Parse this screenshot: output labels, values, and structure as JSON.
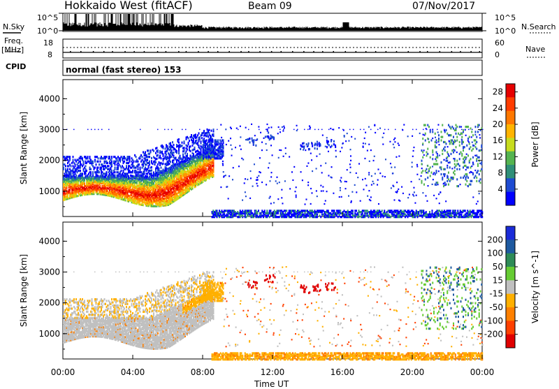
{
  "header": {
    "station": "Hokkaido West (fitACF)",
    "beam": "Beam 09",
    "date": "07/Nov/2017"
  },
  "aux_panels": {
    "nsky_label": "N.Sky",
    "nsearch_label": "N.Search",
    "nsky_ticks": [
      "10^5",
      "10^0"
    ],
    "nsearch_ticks": [
      "10^5",
      "10^0"
    ],
    "freq_label_1": "Freq.",
    "freq_label_2": "[MHz]",
    "freq_ticks": [
      "18",
      "8"
    ],
    "nave_label": "Nave",
    "nave_ticks": [
      "60",
      "0"
    ],
    "cpid_label": "CPID",
    "cpid_value": "normal (fast stereo) 153"
  },
  "colors": {
    "power_scale": [
      "#0000ff",
      "#1e4bd2",
      "#2f8f78",
      "#55b450",
      "#c8dc1e",
      "#ffb400",
      "#ff7800",
      "#ff3c00",
      "#e60000"
    ],
    "velocity_scale": [
      "#1a2bd8",
      "#1e5aa0",
      "#2e8b57",
      "#66cc33",
      "#c0c0c0",
      "#ffb000",
      "#ff8000",
      "#ff4000",
      "#e00000"
    ]
  },
  "chart_data": [
    {
      "type": "heatmap",
      "title": "Power",
      "xlabel": "Time UT",
      "ylabel": "Slant Range [km]",
      "x_ticks": [
        "00:00",
        "04:00",
        "08:00",
        "12:00",
        "16:00",
        "20:00",
        "00:00"
      ],
      "xlim_hours": [
        0,
        24
      ],
      "y_ticks": [
        1000,
        2000,
        3000,
        4000
      ],
      "ylim": [
        180,
        4620
      ],
      "colorbar": {
        "label": "Power [dB]",
        "ticks": [
          4,
          8,
          12,
          16,
          20,
          24,
          28
        ],
        "range": [
          0,
          30
        ]
      },
      "features": [
        {
          "description": "Strong echoes band",
          "time_range": [
            0,
            8.5
          ],
          "range_km": [
            750,
            1600
          ],
          "peak_db": 28
        },
        {
          "description": "Weak echoes above band",
          "time_range": [
            0,
            9.0
          ],
          "range_km": [
            1600,
            2600
          ],
          "peak_db": 8
        },
        {
          "description": "Near-range ground scatter",
          "time_range": [
            9,
            24
          ],
          "range_km": [
            200,
            400
          ],
          "peak_db": 8
        },
        {
          "description": "Late patches",
          "time_range": [
            20.5,
            24
          ],
          "range_km": [
            1200,
            3200
          ],
          "peak_db": 12
        }
      ]
    },
    {
      "type": "heatmap",
      "title": "Velocity",
      "xlabel": "Time UT",
      "ylabel": "Slant Range [km]",
      "x_ticks": [
        "00:00",
        "04:00",
        "08:00",
        "12:00",
        "16:00",
        "20:00",
        "00:00"
      ],
      "xlim_hours": [
        0,
        24
      ],
      "y_ticks": [
        1000,
        2000,
        3000,
        4000
      ],
      "ylim": [
        180,
        4620
      ],
      "colorbar": {
        "label": "Velocity [m s^-1]",
        "ticks": [
          200,
          100,
          50,
          15,
          -15,
          -50,
          -100,
          -200
        ],
        "range": [
          -250,
          250
        ]
      },
      "features": [
        {
          "description": "Low-velocity (grey) echoes",
          "time_range": [
            0,
            8.0
          ],
          "range_km": [
            800,
            2200
          ],
          "velocity": 0
        },
        {
          "description": "Positive-velocity echoes",
          "time_range": [
            7,
            9
          ],
          "range_km": [
            2000,
            2700
          ],
          "velocity": -50
        },
        {
          "description": "Red patches",
          "time_range": [
            10,
            16
          ],
          "range_km": [
            2200,
            2700
          ],
          "velocity": -200
        },
        {
          "description": "Near-range orange band",
          "time_range": [
            9,
            24
          ],
          "range_km": [
            200,
            400
          ],
          "velocity": -50
        },
        {
          "description": "Late green/blue patches",
          "time_range": [
            20.5,
            24
          ],
          "range_km": [
            1200,
            3200
          ],
          "velocity": 50
        }
      ]
    }
  ]
}
